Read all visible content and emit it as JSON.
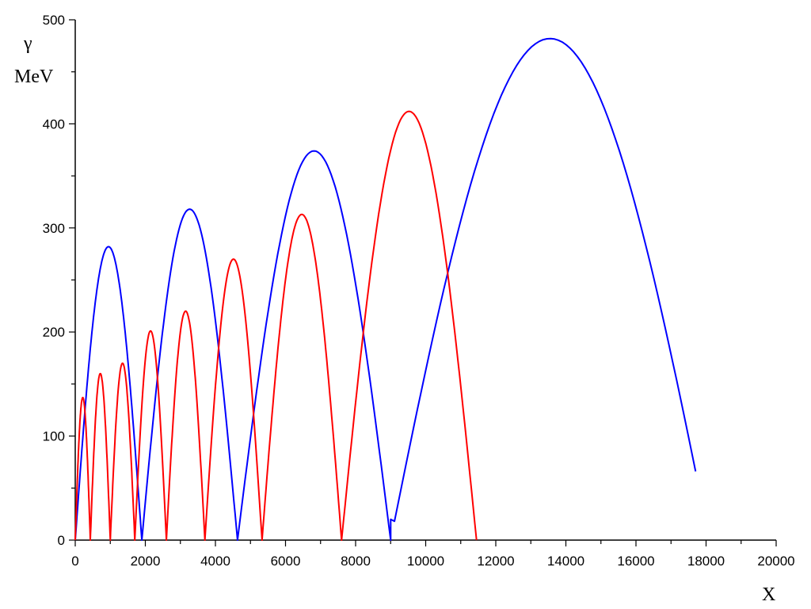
{
  "chart_data": {
    "type": "line",
    "title": "",
    "ylabel_symbol": "γ",
    "ylabel_unit": "MeV",
    "xlabel": "X",
    "xlim": [
      0,
      20000
    ],
    "ylim": [
      0,
      500
    ],
    "x_ticks": [
      "0",
      "2000",
      "4000",
      "6000",
      "8000",
      "10000",
      "12000",
      "14000",
      "16000",
      "18000",
      "20000"
    ],
    "y_ticks": [
      "0",
      "100",
      "200",
      "300",
      "400",
      "500"
    ],
    "grid": false,
    "legend": "none",
    "series": [
      {
        "color": "#0000ff",
        "arcs": [
          {
            "x0": 0,
            "x1": 1900,
            "peak": 282
          },
          {
            "x0": 1900,
            "x1": 4630,
            "peak": 318
          },
          {
            "x0": 4630,
            "x1": 9000,
            "peak": 374
          },
          {
            "x0": 9000,
            "x1": 18100,
            "peak": 482,
            "floor": 20,
            "end_value": 66
          }
        ]
      },
      {
        "color": "#ff0000",
        "arcs": [
          {
            "x0": 0,
            "x1": 430,
            "peak": 137
          },
          {
            "x0": 430,
            "x1": 1000,
            "peak": 160
          },
          {
            "x0": 1000,
            "x1": 1700,
            "peak": 170
          },
          {
            "x0": 1700,
            "x1": 2600,
            "peak": 201
          },
          {
            "x0": 2600,
            "x1": 3700,
            "peak": 220
          },
          {
            "x0": 3700,
            "x1": 5330,
            "peak": 270
          },
          {
            "x0": 5330,
            "x1": 7600,
            "peak": 313
          },
          {
            "x0": 7600,
            "x1": 11450,
            "peak": 412
          }
        ]
      }
    ]
  }
}
